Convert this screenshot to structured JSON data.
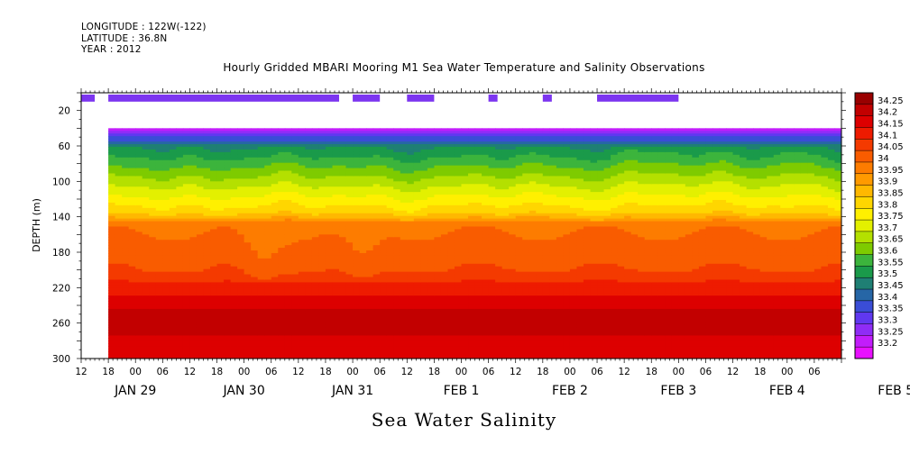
{
  "header": {
    "longitude": "LONGITUDE : 122W(-122)",
    "latitude": "LATITUDE : 36.8N",
    "year": "YEAR : 2012"
  },
  "chart_data": {
    "type": "heatmap",
    "title": "Hourly Gridded MBARI Mooring M1 Sea Water Temperature and Salinity Observations",
    "xlabel": "Sea Water Salinity",
    "ylabel": "DEPTH (m)",
    "ylim": [
      300,
      0
    ],
    "y_ticks": [
      20,
      60,
      100,
      140,
      180,
      220,
      260,
      300
    ],
    "x_range": [
      "2012-01-29T12:00",
      "2012-02-05T12:00"
    ],
    "x_hour_ticks": [
      "12",
      "18",
      "00",
      "06",
      "12",
      "18",
      "00",
      "06",
      "12",
      "18",
      "00",
      "06",
      "12",
      "18",
      "00",
      "06",
      "12",
      "18",
      "00",
      "06",
      "12",
      "18",
      "00",
      "06",
      "12",
      "18",
      "00",
      "06"
    ],
    "x_day_labels": [
      {
        "label": "JAN 29",
        "day": 0
      },
      {
        "label": "JAN 30",
        "day": 1
      },
      {
        "label": "JAN 31",
        "day": 2
      },
      {
        "label": "FEB  1",
        "day": 3
      },
      {
        "label": "FEB  2",
        "day": 4
      },
      {
        "label": "FEB  3",
        "day": 5
      },
      {
        "label": "FEB  4",
        "day": 6
      },
      {
        "label": "FEB  5",
        "day": 7
      }
    ],
    "data_start_hours": 6,
    "data_top_depth": 40,
    "colorbar": {
      "levels": [
        "34.25",
        "34.2",
        "34.15",
        "34.1",
        "34.05",
        "34",
        "33.95",
        "33.9",
        "33.85",
        "33.8",
        "33.75",
        "33.7",
        "33.65",
        "33.6",
        "33.55",
        "33.5",
        "33.45",
        "33.4",
        "33.35",
        "33.3",
        "33.25",
        "33.2"
      ],
      "colors": [
        "#990000",
        "#c20000",
        "#dd0000",
        "#ee1b00",
        "#f43a00",
        "#f95c00",
        "#fd7c00",
        "#ff9a00",
        "#ffb800",
        "#ffd600",
        "#fff000",
        "#e3f000",
        "#b4e000",
        "#7ecb00",
        "#3cb43c",
        "#1a9a4a",
        "#1f7f74",
        "#2666a6",
        "#3a4dd6",
        "#6038f0",
        "#8f2cf6",
        "#c21dfb",
        "#e810ff"
      ]
    },
    "surface_segments_hours": [
      [
        -18,
        -12
      ],
      [
        0,
        3
      ],
      [
        12,
        24
      ],
      [
        36,
        42
      ],
      [
        48,
        60
      ],
      [
        66,
        84
      ],
      [
        102,
        114
      ],
      [
        132,
        144
      ],
      [
        153,
        162
      ],
      [
        174,
        180
      ],
      [
        186,
        198
      ],
      [
        210,
        222
      ],
      [
        240,
        246
      ]
    ],
    "salinity_surface_segments_hours": [
      [
        0,
        3
      ],
      [
        6,
        57
      ],
      [
        60,
        66
      ],
      [
        72,
        78
      ],
      [
        90,
        92
      ],
      [
        102,
        104
      ],
      [
        114,
        132
      ]
    ]
  }
}
